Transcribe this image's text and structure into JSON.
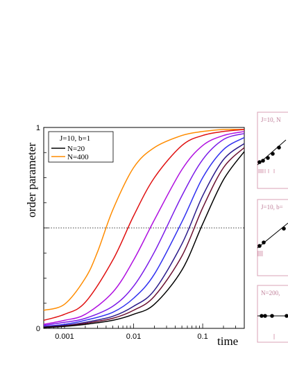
{
  "chart_data": {
    "type": "line",
    "xlabel": "time",
    "ylabel": "order parameter",
    "x_scale": "log",
    "xlim": [
      0.0005,
      0.4
    ],
    "ylim": [
      0,
      1
    ],
    "x_tick_labels": [
      "0.001",
      "0.01",
      "0.1"
    ],
    "x_tick_values": [
      0.001,
      0.01,
      0.1
    ],
    "y_tick_labels": [
      "0",
      "1"
    ],
    "y_tick_values": [
      0,
      1
    ],
    "reference_line": {
      "y": 0.5,
      "style": "dotted"
    },
    "legend": {
      "title": "J=10,  b=1",
      "placement": "top-left",
      "entries": [
        {
          "label": "N=20",
          "color": "#000000"
        },
        {
          "label": "N=400",
          "color": "#ff8c00"
        }
      ]
    },
    "series": [
      {
        "color": "#ff8c00",
        "x": [
          0.0005,
          0.001,
          0.002,
          0.003,
          0.005,
          0.01,
          0.02,
          0.05,
          0.1,
          0.2,
          0.4
        ],
        "y": [
          0.09,
          0.12,
          0.25,
          0.38,
          0.59,
          0.8,
          0.9,
          0.96,
          0.98,
          0.99,
          0.99
        ]
      },
      {
        "color": "#e01010",
        "x": [
          0.0005,
          0.001,
          0.002,
          0.005,
          0.01,
          0.02,
          0.05,
          0.1,
          0.2,
          0.4
        ],
        "y": [
          0.04,
          0.07,
          0.13,
          0.34,
          0.56,
          0.75,
          0.91,
          0.96,
          0.98,
          0.99
        ]
      },
      {
        "color": "#b010e0",
        "x": [
          0.0005,
          0.001,
          0.002,
          0.005,
          0.01,
          0.02,
          0.05,
          0.1,
          0.2,
          0.4
        ],
        "y": [
          0.02,
          0.04,
          0.07,
          0.18,
          0.34,
          0.54,
          0.79,
          0.91,
          0.96,
          0.98
        ]
      },
      {
        "color": "#7a1ae8",
        "x": [
          0.0005,
          0.001,
          0.002,
          0.005,
          0.01,
          0.02,
          0.05,
          0.1,
          0.2,
          0.4
        ],
        "y": [
          0.015,
          0.03,
          0.05,
          0.11,
          0.21,
          0.38,
          0.66,
          0.84,
          0.94,
          0.97
        ]
      },
      {
        "color": "#3030f0",
        "x": [
          0.0005,
          0.001,
          0.002,
          0.005,
          0.01,
          0.02,
          0.05,
          0.1,
          0.2,
          0.4
        ],
        "y": [
          0.01,
          0.02,
          0.04,
          0.08,
          0.15,
          0.27,
          0.53,
          0.75,
          0.89,
          0.95
        ]
      },
      {
        "color": "#2a1a8a",
        "x": [
          0.0005,
          0.001,
          0.002,
          0.005,
          0.01,
          0.02,
          0.05,
          0.1,
          0.2,
          0.4
        ],
        "y": [
          0.008,
          0.015,
          0.03,
          0.06,
          0.11,
          0.19,
          0.42,
          0.66,
          0.84,
          0.92
        ]
      },
      {
        "color": "#6a1030",
        "x": [
          0.0005,
          0.001,
          0.002,
          0.005,
          0.01,
          0.02,
          0.05,
          0.1,
          0.2,
          0.4
        ],
        "y": [
          0.006,
          0.012,
          0.025,
          0.05,
          0.09,
          0.16,
          0.36,
          0.6,
          0.8,
          0.9
        ]
      },
      {
        "color": "#000000",
        "x": [
          0.0005,
          0.001,
          0.002,
          0.005,
          0.01,
          0.02,
          0.05,
          0.1,
          0.2,
          0.4
        ],
        "y": [
          0.004,
          0.01,
          0.02,
          0.04,
          0.07,
          0.12,
          0.29,
          0.52,
          0.74,
          0.88
        ]
      }
    ],
    "insets": [
      {
        "label": "J=10,  N"
      },
      {
        "label": "J=10,  b="
      },
      {
        "label": "N=200,"
      }
    ]
  }
}
